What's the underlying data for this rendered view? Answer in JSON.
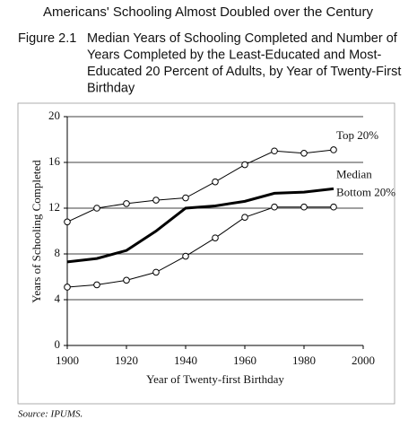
{
  "chart_data": {
    "type": "line",
    "header": "Americans' Schooling Almost Doubled over the Century",
    "figure_label": "Figure 2.1",
    "caption_lines": [
      "Median Years of Schooling Completed and Number of",
      "Years Completed by the Least-Educated and Most-",
      "Educated 20 Percent of Adults, by Year of Twenty-First",
      "Birthday"
    ],
    "x_label": "Year of Twenty-first Birthday",
    "y_label": "Years of Schooling Completed",
    "source": "Source: IPUMS.",
    "x": [
      1900,
      1910,
      1920,
      1930,
      1940,
      1950,
      1960,
      1970,
      1980,
      1990
    ],
    "series": [
      {
        "name": "Top 20%",
        "color": "#000000",
        "line_width": 1,
        "markers": true,
        "values": [
          10.8,
          12.0,
          12.4,
          12.7,
          12.9,
          14.3,
          15.8,
          17.0,
          16.8,
          17.1
        ]
      },
      {
        "name": "Median",
        "color": "#000000",
        "line_width": 3,
        "markers": false,
        "values": [
          7.3,
          7.6,
          8.3,
          10.0,
          12.0,
          12.2,
          12.6,
          13.3,
          13.4,
          13.7
        ]
      },
      {
        "name": "Bottom 20%",
        "color": "#000000",
        "line_width": 1,
        "markers": true,
        "values": [
          5.1,
          5.3,
          5.7,
          6.4,
          7.8,
          9.4,
          11.2,
          12.1,
          12.1,
          12.1
        ]
      }
    ],
    "xlim": [
      1900,
      2000
    ],
    "xticks": [
      1900,
      1920,
      1940,
      1960,
      1980,
      2000
    ],
    "ylim": [
      0,
      20
    ],
    "yticks": [
      0,
      4,
      8,
      12,
      16,
      20
    ],
    "grid": true
  }
}
